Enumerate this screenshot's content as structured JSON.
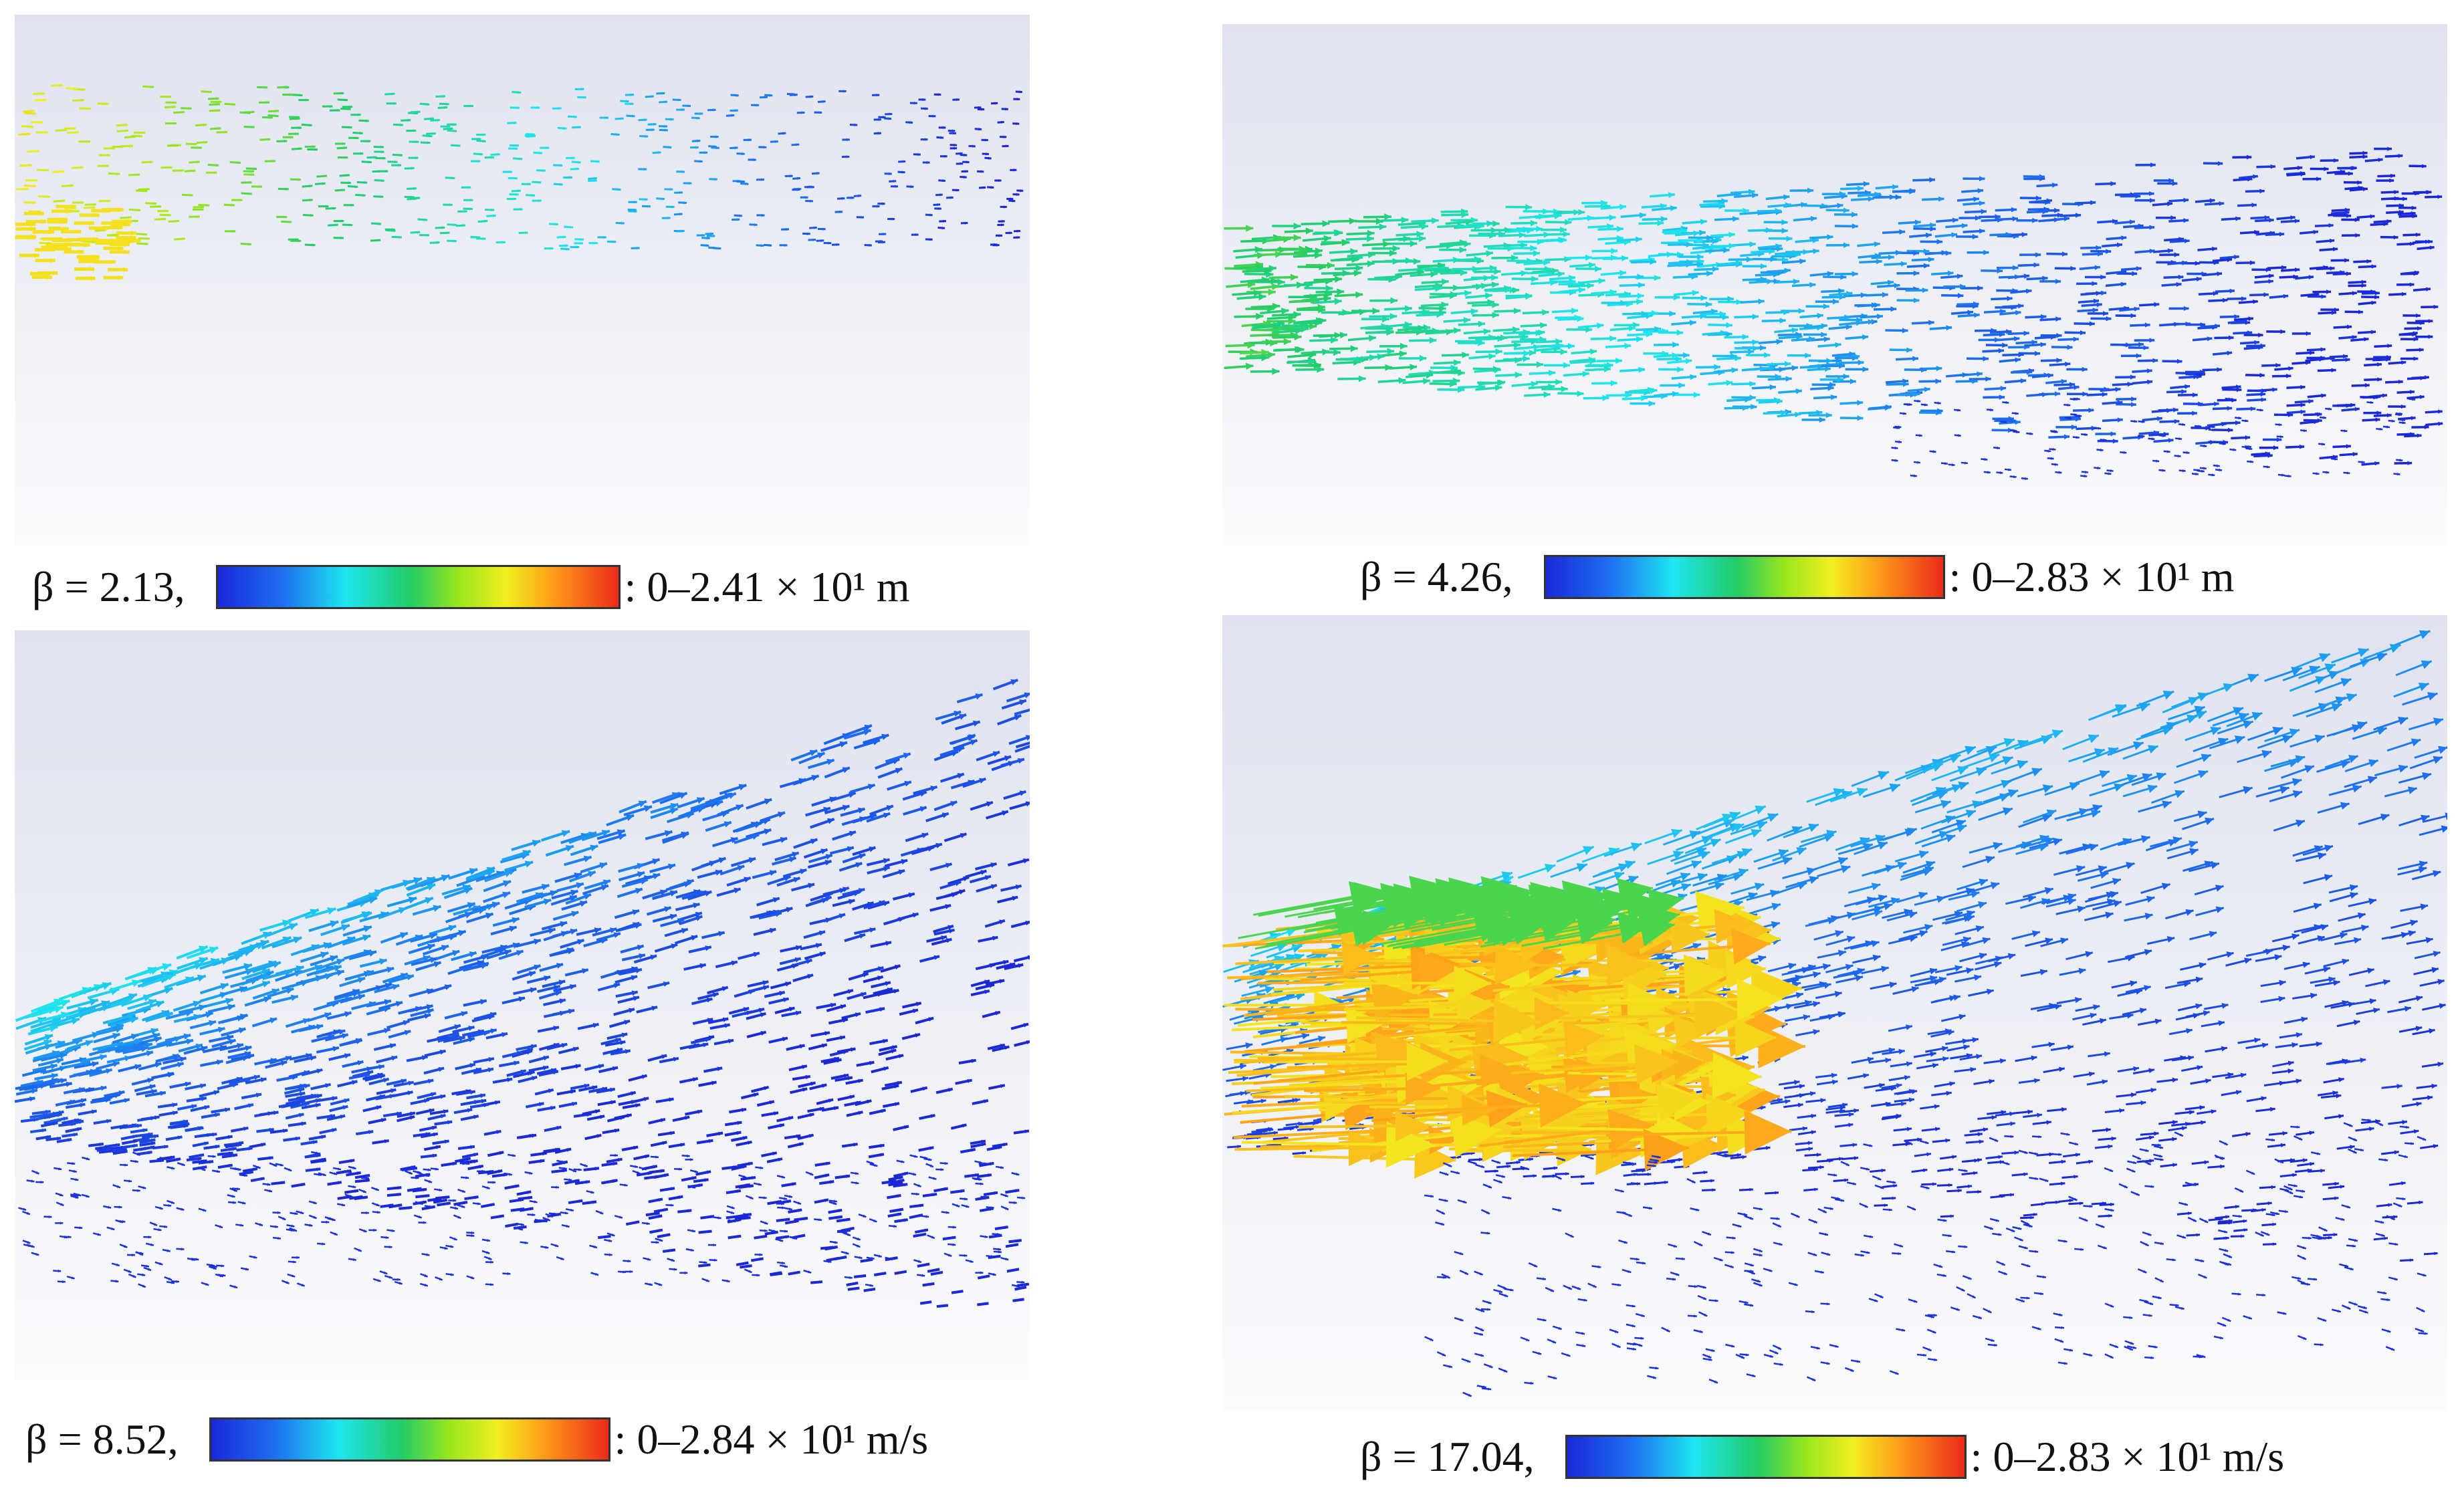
{
  "panels": [
    {
      "beta": "β = 2.13,",
      "range": ": 0–2.41 × 10¹ m",
      "colorbar_icon": "blue-to-red-colorbar"
    },
    {
      "beta": "β = 4.26,",
      "range": ": 0–2.83 × 10¹ m",
      "colorbar_icon": "blue-to-red-colorbar"
    },
    {
      "beta": "β = 8.52,",
      "range": ": 0–2.84 × 10¹ m/s",
      "colorbar_icon": "blue-to-red-colorbar"
    },
    {
      "beta": "β = 17.04,",
      "range": ": 0–2.83 × 10¹ m/s",
      "colorbar_icon": "blue-to-red-colorbar"
    }
  ],
  "colors": {
    "background_top": "#dfe2ee",
    "background_bottom": "#fafbfd",
    "low": "#1a28d8",
    "mid": "#22cc66",
    "high": "#ea2a1a"
  }
}
